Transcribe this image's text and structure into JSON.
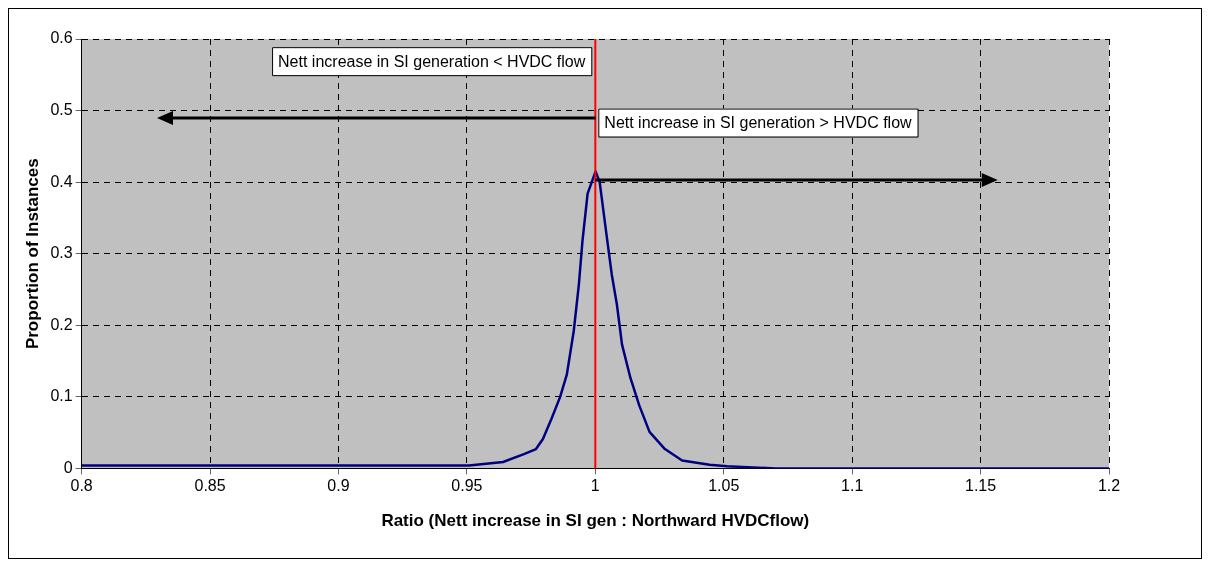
{
  "chart_data": {
    "type": "line",
    "xlabel": "Ratio (Nett increase in SI gen : Northward HVDCflow)",
    "ylabel": "Proportion of Instances",
    "x": [
      0.8,
      0.85,
      0.9,
      0.95,
      0.9508,
      0.9641,
      0.9722,
      0.9769,
      0.9796,
      0.9829,
      0.9863,
      0.9889,
      0.9916,
      0.9936,
      0.995,
      0.997,
      1.0001,
      1.0017,
      1.0043,
      1.0064,
      1.0084,
      1.0104,
      1.0137,
      1.0171,
      1.0211,
      1.0271,
      1.0338,
      1.0445,
      1.0513,
      1.07,
      1.1,
      1.15,
      1.2
    ],
    "series": [
      {
        "color": "#000080",
        "values": [
          0.004,
          0.004,
          0.004,
          0.004,
          0.004,
          0.009,
          0.02,
          0.027,
          0.041,
          0.069,
          0.1,
          0.131,
          0.192,
          0.257,
          0.318,
          0.384,
          0.415,
          0.4,
          0.328,
          0.271,
          0.229,
          0.173,
          0.126,
          0.088,
          0.051,
          0.027,
          0.011,
          0.005,
          0.003,
          0,
          0,
          0,
          0
        ]
      }
    ],
    "xlim": [
      0.8,
      1.2
    ],
    "xticks": [
      0.8,
      0.85,
      0.9,
      0.95,
      1,
      1.05,
      1.1,
      1.15,
      1.2
    ],
    "ylim": [
      0,
      0.6
    ],
    "yticks": [
      0,
      0.1,
      0.2,
      0.3,
      0.4,
      0.5,
      0.6
    ],
    "ref_lines": [
      {
        "axis": "x",
        "value": 1,
        "color": "#ff0000"
      }
    ],
    "annotations": [
      "Nett increase in SI generation < HVDC flow",
      "Nett increase in SI generation > HVDC flow"
    ],
    "grid": true,
    "legend": false,
    "marker": "none",
    "line_style": "solid"
  }
}
